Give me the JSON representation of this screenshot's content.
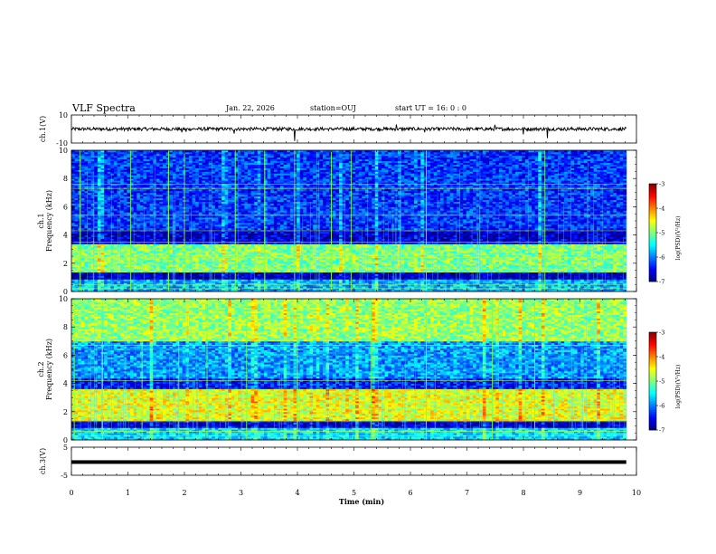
{
  "header": {
    "title": "VLF Spectra",
    "date": "Jan. 22, 2026",
    "station": "station=OUJ",
    "start": "start UT =  16: 0  : 0"
  },
  "colors": {
    "background": "#ffffff",
    "axis": "#000000",
    "spectrogram_dark": "#00007f",
    "spectrogram_mid": "#00ff80",
    "spectrogram_high": "#ff0000"
  },
  "chart_data": [
    {
      "type": "line",
      "name": "ch1-voltage",
      "ylabel": "ch.1(V)",
      "ylim": [
        -10,
        10
      ],
      "ytick_labels": [
        "10",
        "-10"
      ],
      "baseline": 0,
      "noise_amplitude": 1.2,
      "spikes": [
        {
          "t": 1.0,
          "v": -1.6
        },
        {
          "t": 1.95,
          "v": -2.4
        },
        {
          "t": 2.03,
          "v": -2.0
        },
        {
          "t": 2.88,
          "v": -3.2
        },
        {
          "t": 3.95,
          "v": -8.5
        },
        {
          "t": 5.75,
          "v": 3.2
        },
        {
          "t": 6.25,
          "v": -2.4
        },
        {
          "t": 7.5,
          "v": 3.0
        },
        {
          "t": 8.0,
          "v": -3.8
        },
        {
          "t": 8.42,
          "v": -6.5
        }
      ]
    },
    {
      "type": "heatmap",
      "name": "ch1-spectrogram",
      "ylabel": "ch.1\nFrequency (kHz)",
      "ylim": [
        0,
        10
      ],
      "ytick_labels": [
        "0",
        "2",
        "4",
        "6",
        "8",
        "10"
      ],
      "color_range": [
        -7,
        -3
      ],
      "bands": [
        {
          "f": [
            0,
            0.9
          ],
          "level": -5.8
        },
        {
          "f": [
            0.9,
            1.4
          ],
          "level": -6.8
        },
        {
          "f": [
            1.4,
            3.4
          ],
          "level": -5.0
        },
        {
          "f": [
            3.4,
            4.4
          ],
          "level": -6.7
        },
        {
          "f": [
            4.4,
            10
          ],
          "level": -6.3
        }
      ],
      "tone_lines_khz": [
        0.2,
        0.5,
        1.6,
        2.4,
        2.6,
        3.5,
        4.3,
        5.4,
        7.3,
        7.6
      ],
      "bright_verticals_min": [
        0.15,
        1.05,
        1.72,
        2.0,
        2.9,
        3.42,
        3.95,
        4.6,
        4.95,
        6.28,
        8.38
      ]
    },
    {
      "type": "heatmap",
      "name": "ch2-spectrogram",
      "ylabel": "ch.2\nFrequency (kHz)",
      "ylim": [
        0,
        10
      ],
      "ytick_labels": [
        "0",
        "2",
        "4",
        "6",
        "8",
        "10"
      ],
      "color_range": [
        -7,
        -3
      ],
      "bands": [
        {
          "f": [
            0,
            0.9
          ],
          "level": -5.6
        },
        {
          "f": [
            0.9,
            1.4
          ],
          "level": -6.7
        },
        {
          "f": [
            1.4,
            3.6
          ],
          "level": -4.6
        },
        {
          "f": [
            3.6,
            4.4
          ],
          "level": -6.4
        },
        {
          "f": [
            4.4,
            7.0
          ],
          "level": -5.9
        },
        {
          "f": [
            7.0,
            10
          ],
          "level": -4.9
        }
      ],
      "tone_lines_khz": [
        0.3,
        0.6,
        1.3,
        2.2,
        2.6,
        3.4,
        4.2,
        6.7,
        7.2
      ],
      "bright_verticals_min": [
        0.05,
        0.55,
        1.25,
        1.9,
        2.4,
        3.1,
        4.0,
        5.3,
        6.28,
        7.45,
        8.2
      ]
    },
    {
      "type": "line",
      "name": "ch3-voltage",
      "ylabel": "ch.3(V)",
      "ylim": [
        -5,
        5
      ],
      "ytick_labels": [
        "5",
        "-5"
      ],
      "baseline": -0.3,
      "noise_amplitude": 0.1
    }
  ],
  "x_axis": {
    "label": "Time (min)",
    "xlim": [
      0,
      10
    ],
    "data_extent": [
      0,
      9.82
    ],
    "tick_labels": [
      "0",
      "1",
      "2",
      "3",
      "4",
      "5",
      "6",
      "7",
      "8",
      "9",
      "10"
    ]
  },
  "colorbars": [
    {
      "tick_labels": [
        "-3",
        "-4",
        "-5",
        "-6",
        "-7"
      ],
      "label": "log(PSD)(V²/Hz)"
    },
    {
      "tick_labels": [
        "-3",
        "-4",
        "-5",
        "-6",
        "-7"
      ],
      "label": "log(PSD)(V²/Hz)"
    }
  ]
}
